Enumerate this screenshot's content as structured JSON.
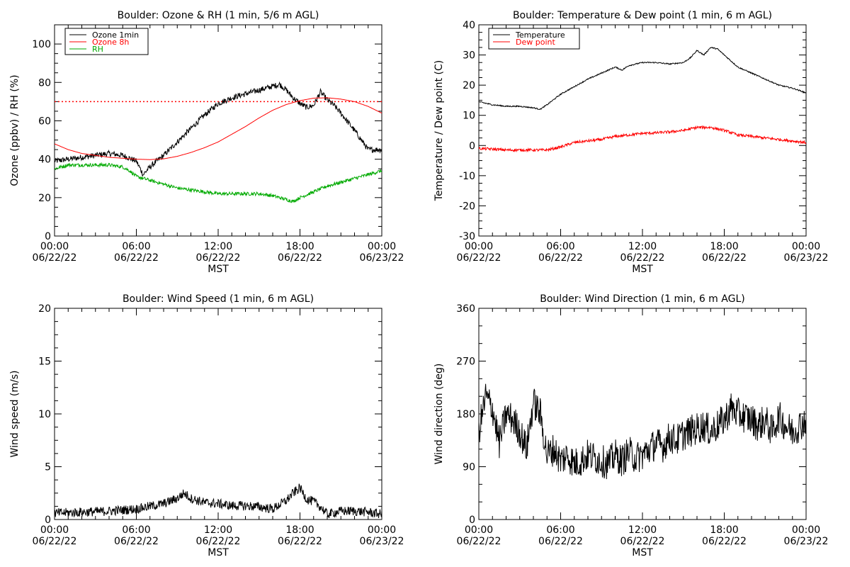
{
  "chart_data": [
    {
      "type": "line",
      "title": "Boulder: Ozone & RH (1 min, 5/6 m AGL)",
      "xlabel": "MST",
      "ylabel": "Ozone (ppbv) / RH (%)",
      "xlim": [
        0,
        24
      ],
      "ylim": [
        0,
        110
      ],
      "yticks": [
        0,
        20,
        40,
        60,
        80,
        100
      ],
      "xticks": [
        {
          "t": 0,
          "time": "00:00",
          "date": "06/22/22"
        },
        {
          "t": 6,
          "time": "06:00",
          "date": "06/22/22"
        },
        {
          "t": 12,
          "time": "12:00",
          "date": "06/22/22"
        },
        {
          "t": 18,
          "time": "18:00",
          "date": "06/22/22"
        },
        {
          "t": 24,
          "time": "00:00",
          "date": "06/23/22"
        }
      ],
      "legend_position": "top-left",
      "hline": {
        "value": 70,
        "color": "#ff0000",
        "style": "dotted"
      },
      "series": [
        {
          "name": "Ozone 1min",
          "color": "#000000",
          "noise": 1.5,
          "x": [
            0,
            1,
            2,
            3,
            4,
            5,
            6,
            6.5,
            7,
            8,
            9,
            10,
            11,
            12,
            13,
            14,
            15,
            16,
            16.5,
            17,
            17.5,
            18,
            18.5,
            19,
            19.5,
            20,
            20.5,
            21,
            22,
            23,
            24
          ],
          "y": [
            39,
            40,
            41,
            42,
            43,
            42,
            39,
            32,
            36,
            42,
            49,
            56,
            63,
            69,
            72,
            74,
            76,
            78,
            79,
            76,
            72,
            69,
            67,
            68,
            75,
            71,
            68,
            64,
            55,
            45,
            45
          ]
        },
        {
          "name": "Ozone 8h",
          "color": "#ff0000",
          "noise": 0,
          "x": [
            0,
            1,
            2,
            3,
            4,
            5,
            6,
            7,
            8,
            9,
            10,
            11,
            12,
            13,
            14,
            15,
            16,
            17,
            18,
            19,
            20,
            21,
            22,
            23,
            24
          ],
          "y": [
            48,
            45,
            43,
            42,
            41,
            40.5,
            40,
            39.8,
            40.2,
            41.5,
            43.5,
            46,
            49,
            53,
            57,
            61.5,
            65.5,
            68.5,
            70.5,
            71.8,
            72,
            71.3,
            70,
            67.5,
            64
          ]
        },
        {
          "name": "RH",
          "color": "#00aa00",
          "noise": 0.9,
          "x": [
            0,
            1,
            2,
            3,
            4,
            5,
            5.5,
            6,
            7,
            8,
            9,
            10,
            11,
            12,
            13,
            14,
            15,
            16,
            17,
            17.5,
            18,
            19,
            20,
            21,
            22,
            23,
            24
          ],
          "y": [
            35,
            37,
            37,
            37,
            37,
            36,
            34,
            31,
            29,
            27,
            25,
            24,
            23,
            22,
            22,
            22,
            22,
            21,
            19,
            18,
            20,
            23,
            26,
            28,
            30,
            32,
            34
          ]
        }
      ]
    },
    {
      "type": "line",
      "title": "Boulder: Temperature & Dew point (1 min, 6 m AGL)",
      "xlabel": "MST",
      "ylabel": "Temperature / Dew point (C)",
      "xlim": [
        0,
        24
      ],
      "ylim": [
        -30,
        40
      ],
      "yticks": [
        -30,
        -20,
        -10,
        0,
        10,
        20,
        30,
        40
      ],
      "xticks": [
        {
          "t": 0,
          "time": "00:00",
          "date": "06/22/22"
        },
        {
          "t": 6,
          "time": "06:00",
          "date": "06/22/22"
        },
        {
          "t": 12,
          "time": "12:00",
          "date": "06/22/22"
        },
        {
          "t": 18,
          "time": "18:00",
          "date": "06/22/22"
        },
        {
          "t": 24,
          "time": "00:00",
          "date": "06/23/22"
        }
      ],
      "legend_position": "top-left",
      "series": [
        {
          "name": "Temperature",
          "color": "#000000",
          "noise": 0.2,
          "x": [
            0,
            1,
            2,
            3,
            4,
            4.5,
            5,
            6,
            7,
            8,
            9,
            10,
            10.5,
            11,
            12,
            13,
            14,
            15,
            15.5,
            16,
            16.5,
            17,
            17.5,
            18,
            19,
            20,
            21,
            22,
            23,
            24
          ],
          "y": [
            14.5,
            13.5,
            13,
            13,
            12.5,
            12,
            13.5,
            17,
            19.5,
            22,
            24,
            26,
            25,
            26.5,
            27.5,
            27.5,
            27,
            27.5,
            29,
            31.5,
            30,
            32.5,
            32,
            30,
            26,
            24,
            22,
            20,
            19,
            17.5
          ]
        },
        {
          "name": "Dew point",
          "color": "#ff0000",
          "noise": 0.45,
          "x": [
            0,
            1,
            2,
            3,
            4,
            5,
            6,
            7,
            8,
            9,
            10,
            11,
            12,
            13,
            14,
            15,
            16,
            17,
            18,
            19,
            20,
            21,
            22,
            23,
            24
          ],
          "y": [
            -1,
            -1.2,
            -1.5,
            -1.5,
            -1.5,
            -1.5,
            -0.5,
            1,
            1.5,
            2,
            3,
            3.5,
            4,
            4.2,
            4.5,
            5,
            6,
            6,
            5,
            3.5,
            3,
            2.5,
            2,
            1.5,
            1
          ]
        }
      ]
    },
    {
      "type": "line",
      "title": "Boulder: Wind Speed (1 min, 6 m AGL)",
      "xlabel": "MST",
      "ylabel": "Wind speed (m/s)",
      "xlim": [
        0,
        24
      ],
      "ylim": [
        0,
        20
      ],
      "yticks": [
        0,
        5,
        10,
        15,
        20
      ],
      "xticks": [
        {
          "t": 0,
          "time": "00:00",
          "date": "06/22/22"
        },
        {
          "t": 6,
          "time": "06:00",
          "date": "06/22/22"
        },
        {
          "t": 12,
          "time": "12:00",
          "date": "06/22/22"
        },
        {
          "t": 18,
          "time": "18:00",
          "date": "06/22/22"
        },
        {
          "t": 24,
          "time": "00:00",
          "date": "06/23/22"
        }
      ],
      "series": [
        {
          "name": "",
          "color": "#000000",
          "noise": 0.45,
          "x": [
            0,
            2,
            4,
            6,
            8,
            9,
            9.5,
            10,
            11,
            12,
            13,
            14,
            15,
            16,
            17,
            17.5,
            18,
            18.5,
            19,
            19.5,
            20,
            21,
            22,
            23,
            24
          ],
          "y": [
            0.6,
            0.7,
            0.8,
            1.0,
            1.5,
            2.0,
            2.5,
            2.0,
            1.6,
            1.5,
            1.3,
            1.3,
            1.2,
            1.0,
            1.8,
            2.5,
            3.0,
            1.9,
            1.7,
            1.2,
            0.5,
            0.8,
            0.8,
            0.7,
            0.5
          ]
        }
      ]
    },
    {
      "type": "line",
      "title": "Boulder: Wind Direction (1 min, 6 m AGL)",
      "xlabel": "MST",
      "ylabel": "Wind direction (deg)",
      "xlim": [
        0,
        24
      ],
      "ylim": [
        0,
        360
      ],
      "yticks": [
        0,
        90,
        180,
        270,
        360
      ],
      "xticks": [
        {
          "t": 0,
          "time": "00:00",
          "date": "06/22/22"
        },
        {
          "t": 6,
          "time": "06:00",
          "date": "06/22/22"
        },
        {
          "t": 12,
          "time": "12:00",
          "date": "06/22/22"
        },
        {
          "t": 18,
          "time": "18:00",
          "date": "06/22/22"
        },
        {
          "t": 24,
          "time": "00:00",
          "date": "06/23/22"
        }
      ],
      "series": [
        {
          "name": "",
          "color": "#000000",
          "noise": 28,
          "x": [
            0,
            0.5,
            1,
            1.5,
            2,
            2.5,
            3,
            3.5,
            4,
            4.5,
            5,
            5.5,
            6,
            6.5,
            7,
            7.5,
            8,
            8.5,
            9,
            9.5,
            10,
            10.5,
            11,
            11.5,
            12,
            12.5,
            13,
            13.5,
            14,
            14.5,
            15,
            15.5,
            16,
            16.5,
            17,
            17.5,
            18,
            18.5,
            19,
            19.5,
            20,
            20.5,
            21,
            21.5,
            22,
            22.5,
            23,
            23.5,
            24
          ],
          "y": [
            150,
            210,
            190,
            130,
            180,
            170,
            150,
            120,
            200,
            180,
            110,
            120,
            100,
            110,
            95,
            100,
            110,
            105,
            100,
            95,
            110,
            100,
            115,
            105,
            110,
            120,
            130,
            125,
            140,
            135,
            145,
            150,
            155,
            160,
            150,
            160,
            170,
            190,
            180,
            175,
            170,
            160,
            170,
            150,
            175,
            160,
            150,
            160,
            170
          ]
        }
      ]
    }
  ]
}
